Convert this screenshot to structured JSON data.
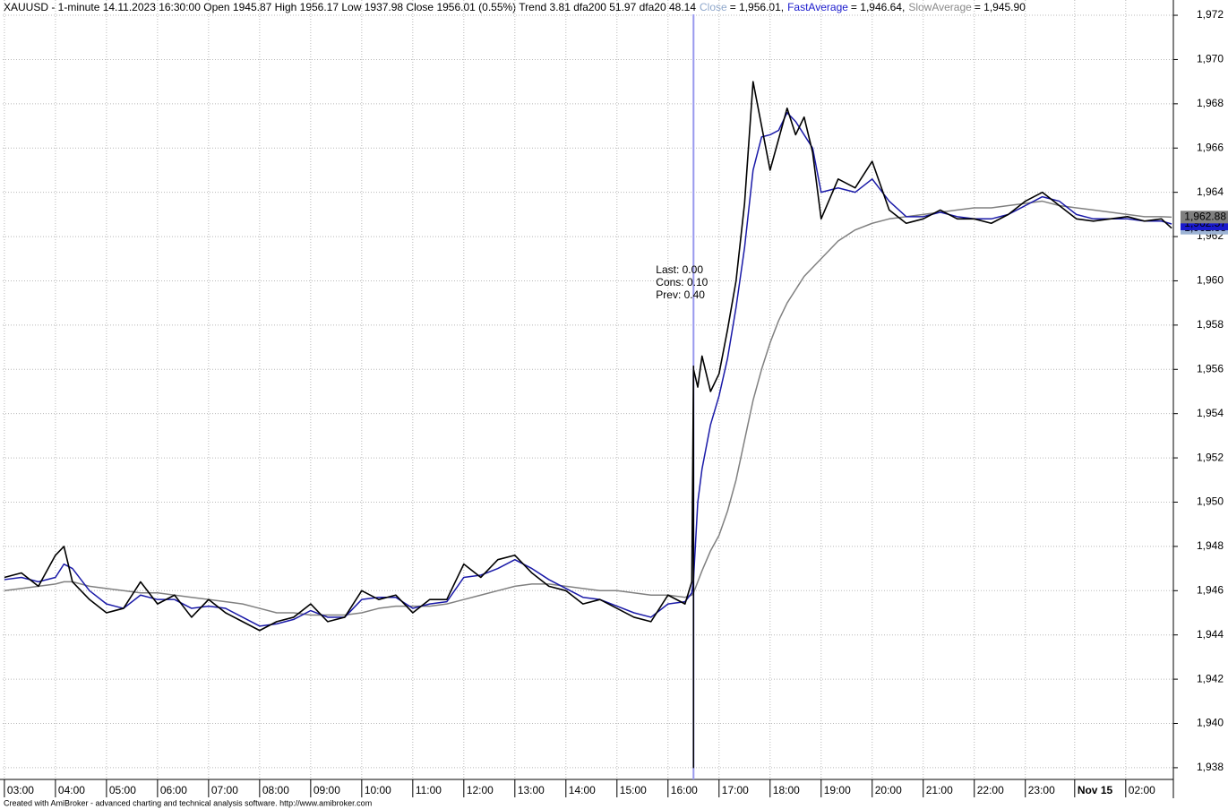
{
  "chart_data": {
    "type": "line",
    "title": "XAUUSD - 1-minute 14.11.2023 16:30:00 Open 1945.87 High 1956.17 Low 1937.98 Close 1956.01 (0.55%) Trend 3.81 dfa200 51.97 dfa20 48.14",
    "footer": "Created with AmiBroker - advanced charting and technical analysis software. http://www.amibroker.com",
    "annotations": [
      "Last: 0.00",
      "Cons: 0.10",
      "Prev: 0.40"
    ],
    "annotation_color": "#229922",
    "selected_x": 810,
    "selected_color": "#9999ee",
    "spike_bar": {
      "x": 810,
      "high": 1956.17,
      "low": 1937.98
    },
    "x": [
      0,
      20,
      40,
      60,
      70,
      80,
      100,
      120,
      140,
      160,
      180,
      200,
      220,
      240,
      260,
      280,
      300,
      320,
      340,
      360,
      380,
      400,
      420,
      440,
      460,
      480,
      500,
      520,
      540,
      560,
      580,
      600,
      620,
      640,
      660,
      680,
      700,
      720,
      740,
      760,
      780,
      800,
      808,
      810,
      815,
      820,
      830,
      840,
      850,
      860,
      870,
      880,
      890,
      900,
      910,
      920,
      930,
      940,
      950,
      960,
      980,
      1000,
      1020,
      1040,
      1060,
      1080,
      1100,
      1120,
      1140,
      1160,
      1180,
      1200,
      1220,
      1240,
      1260,
      1280,
      1300,
      1320,
      1340,
      1360,
      1372
    ],
    "series": [
      {
        "name": "Close",
        "color": "#000000",
        "name_color": "#8fa8cc",
        "tag_color": "#9cb3d4",
        "tag_text": "#000000",
        "legend_value": "= 1,956.01,",
        "last_label": "1,962.38",
        "values": [
          1946.6,
          1946.8,
          1946.2,
          1947.6,
          1948.0,
          1946.4,
          1945.6,
          1945.0,
          1945.2,
          1946.4,
          1945.4,
          1945.8,
          1944.8,
          1945.6,
          1945.0,
          1944.6,
          1944.2,
          1944.6,
          1944.8,
          1945.4,
          1944.6,
          1944.8,
          1946.0,
          1945.6,
          1945.8,
          1945.0,
          1945.6,
          1945.6,
          1947.2,
          1946.6,
          1947.4,
          1947.6,
          1946.8,
          1946.2,
          1946.0,
          1945.4,
          1945.6,
          1945.2,
          1944.8,
          1944.6,
          1945.8,
          1945.4,
          1946.4,
          1956.0,
          1955.2,
          1956.6,
          1955.0,
          1955.8,
          1957.8,
          1960.0,
          1963.5,
          1969.0,
          1967.0,
          1965.0,
          1966.4,
          1967.8,
          1966.6,
          1967.4,
          1965.8,
          1962.8,
          1964.6,
          1964.2,
          1965.4,
          1963.2,
          1962.6,
          1962.8,
          1963.2,
          1962.8,
          1962.8,
          1962.6,
          1963.0,
          1963.6,
          1964.0,
          1963.4,
          1962.8,
          1962.7,
          1962.8,
          1962.9,
          1962.7,
          1962.8,
          1962.38
        ]
      },
      {
        "name": "FastAverage",
        "color": "#1a1aa8",
        "name_color": "#1a1acc",
        "tag_color": "#1a1acc",
        "tag_text": "#ffffff",
        "legend_value": "= 1,946.64,",
        "last_label": "1,962.57",
        "values": [
          1946.5,
          1946.6,
          1946.4,
          1946.6,
          1947.2,
          1947.0,
          1946.0,
          1945.4,
          1945.2,
          1945.8,
          1945.6,
          1945.6,
          1945.2,
          1945.3,
          1945.2,
          1944.8,
          1944.4,
          1944.5,
          1944.7,
          1945.1,
          1944.8,
          1944.8,
          1945.6,
          1945.7,
          1945.7,
          1945.2,
          1945.4,
          1945.5,
          1946.6,
          1946.7,
          1947.0,
          1947.4,
          1947.0,
          1946.5,
          1946.1,
          1945.7,
          1945.6,
          1945.3,
          1945.0,
          1944.8,
          1945.4,
          1945.5,
          1945.9,
          1946.5,
          1950.0,
          1951.5,
          1953.5,
          1954.8,
          1956.5,
          1958.8,
          1961.5,
          1965.0,
          1966.5,
          1966.6,
          1966.8,
          1967.6,
          1967.2,
          1966.6,
          1966.0,
          1964.0,
          1964.2,
          1964.0,
          1964.6,
          1963.6,
          1962.9,
          1962.9,
          1963.1,
          1962.9,
          1962.8,
          1962.8,
          1963.0,
          1963.4,
          1963.8,
          1963.6,
          1963.0,
          1962.8,
          1962.8,
          1962.8,
          1962.7,
          1962.7,
          1962.57
        ]
      },
      {
        "name": "SlowAverage",
        "color": "#808080",
        "name_color": "#8a8a8a",
        "tag_color": "#7f7f7f",
        "tag_text": "#000000",
        "legend_value": "= 1,945.90",
        "last_label": "1,962.88",
        "values": [
          1946.0,
          1946.1,
          1946.2,
          1946.3,
          1946.4,
          1946.4,
          1946.2,
          1946.1,
          1946.0,
          1945.9,
          1945.9,
          1945.8,
          1945.7,
          1945.6,
          1945.5,
          1945.4,
          1945.2,
          1945.0,
          1945.0,
          1944.9,
          1944.9,
          1944.9,
          1945.0,
          1945.2,
          1945.3,
          1945.3,
          1945.3,
          1945.4,
          1945.6,
          1945.8,
          1946.0,
          1946.2,
          1946.3,
          1946.3,
          1946.2,
          1946.1,
          1946.0,
          1946.0,
          1945.9,
          1945.8,
          1945.8,
          1945.7,
          1945.8,
          1945.9,
          1946.4,
          1946.9,
          1947.8,
          1948.5,
          1949.6,
          1951.0,
          1952.8,
          1954.6,
          1956.0,
          1957.2,
          1958.2,
          1959.0,
          1959.6,
          1960.2,
          1960.6,
          1961.0,
          1961.8,
          1962.3,
          1962.6,
          1962.8,
          1962.9,
          1963.0,
          1963.1,
          1963.2,
          1963.3,
          1963.3,
          1963.4,
          1963.5,
          1963.6,
          1963.4,
          1963.3,
          1963.2,
          1963.1,
          1963.0,
          1962.9,
          1962.9,
          1962.88
        ]
      }
    ],
    "xlim": [
      -2,
      1374
    ],
    "ylim": [
      1937.47,
      1972.69
    ],
    "xticks": [
      {
        "value": 0,
        "label": "03:00"
      },
      {
        "value": 60,
        "label": "04:00"
      },
      {
        "value": 120,
        "label": "05:00"
      },
      {
        "value": 180,
        "label": "06:00"
      },
      {
        "value": 240,
        "label": "07:00"
      },
      {
        "value": 300,
        "label": "08:00"
      },
      {
        "value": 360,
        "label": "09:00"
      },
      {
        "value": 420,
        "label": "10:00"
      },
      {
        "value": 480,
        "label": "11:00"
      },
      {
        "value": 540,
        "label": "12:00"
      },
      {
        "value": 600,
        "label": "13:00"
      },
      {
        "value": 660,
        "label": "14:00"
      },
      {
        "value": 720,
        "label": "15:00"
      },
      {
        "value": 780,
        "label": "16:00"
      },
      {
        "value": 840,
        "label": "17:00"
      },
      {
        "value": 900,
        "label": "18:00"
      },
      {
        "value": 960,
        "label": "19:00"
      },
      {
        "value": 1020,
        "label": "20:00"
      },
      {
        "value": 1080,
        "label": "21:00"
      },
      {
        "value": 1140,
        "label": "22:00"
      },
      {
        "value": 1200,
        "label": "23:00"
      },
      {
        "value": 1258,
        "label": "Nov 15"
      },
      {
        "value": 1318,
        "label": "02:00"
      }
    ],
    "bold_xtick": 21,
    "yticks": [
      {
        "value": 1938,
        "label": "1,938"
      },
      {
        "value": 1940,
        "label": "1,940"
      },
      {
        "value": 1942,
        "label": "1,942"
      },
      {
        "value": 1944,
        "label": "1,944"
      },
      {
        "value": 1946,
        "label": "1,946"
      },
      {
        "value": 1948,
        "label": "1,948"
      },
      {
        "value": 1950,
        "label": "1,950"
      },
      {
        "value": 1952,
        "label": "1,952"
      },
      {
        "value": 1954,
        "label": "1,954"
      },
      {
        "value": 1956,
        "label": "1,956"
      },
      {
        "value": 1958,
        "label": "1,958"
      },
      {
        "value": 1960,
        "label": "1,960"
      },
      {
        "value": 1962,
        "label": "1,962"
      },
      {
        "value": 1964,
        "label": "1,964"
      },
      {
        "value": 1966,
        "label": "1,966"
      },
      {
        "value": 1968,
        "label": "1,968"
      },
      {
        "value": 1970,
        "label": "1,970"
      },
      {
        "value": 1972,
        "label": "1,972"
      }
    ],
    "grid": true
  }
}
